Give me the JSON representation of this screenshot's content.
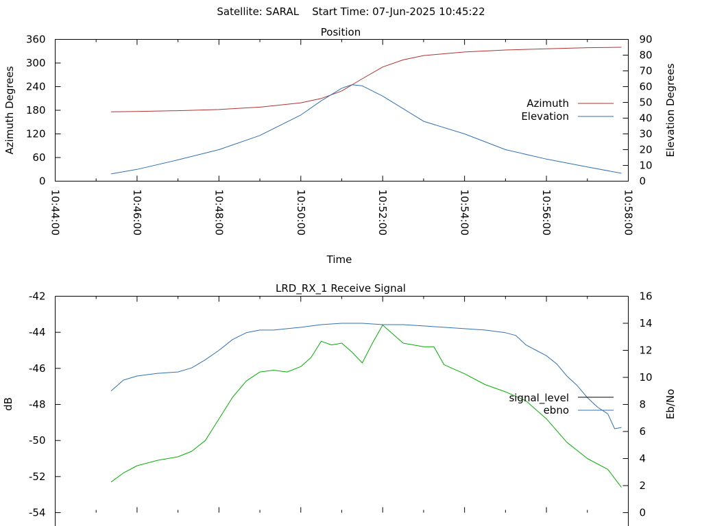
{
  "header": {
    "satellite_label": "Satellite: SARAL",
    "start_time_label": "Start Time: 07-Jun-2025 10:45:22"
  },
  "chart_data": [
    {
      "type": "line",
      "title": "Position",
      "xlabel": "Time",
      "ylabel": "Azimuth Degrees",
      "y2label": "Elevation Degrees",
      "xlim": [
        "10:44:00",
        "10:58:00"
      ],
      "ylim": [
        0,
        360
      ],
      "y2lim": [
        0,
        90
      ],
      "x_ticks": [
        "10:44:00",
        "10:46:00",
        "10:48:00",
        "10:50:00",
        "10:52:00",
        "10:54:00",
        "10:56:00",
        "10:58:00"
      ],
      "y_ticks": [
        "0",
        "60",
        "120",
        "180",
        "240",
        "300",
        "360"
      ],
      "y2_ticks": [
        "0",
        "10",
        "20",
        "30",
        "40",
        "50",
        "60",
        "70",
        "80",
        "90"
      ],
      "legend_position": "right",
      "series": [
        {
          "name": "Azimuth",
          "axis": "y",
          "color": "#b03030",
          "x": [
            "10:45:22",
            "10:46:00",
            "10:47:00",
            "10:48:00",
            "10:49:00",
            "10:50:00",
            "10:50:30",
            "10:51:00",
            "10:51:30",
            "10:52:00",
            "10:52:30",
            "10:53:00",
            "10:54:00",
            "10:55:00",
            "10:56:00",
            "10:57:00",
            "10:57:50"
          ],
          "values": [
            176,
            177,
            179,
            182,
            188,
            199,
            210,
            229,
            260,
            290,
            308,
            319,
            328,
            333,
            336,
            339,
            340
          ]
        },
        {
          "name": "Elevation",
          "axis": "y2",
          "color": "#3070b0",
          "x": [
            "10:45:22",
            "10:46:00",
            "10:47:00",
            "10:48:00",
            "10:49:00",
            "10:50:00",
            "10:50:30",
            "10:51:00",
            "10:51:15",
            "10:51:30",
            "10:52:00",
            "10:52:30",
            "10:53:00",
            "10:54:00",
            "10:55:00",
            "10:56:00",
            "10:57:00",
            "10:57:50"
          ],
          "values": [
            4.6,
            7.5,
            13.5,
            20,
            29,
            42,
            51,
            59,
            61.2,
            60.5,
            54,
            46,
            38,
            30,
            20,
            14,
            9,
            5
          ]
        }
      ]
    },
    {
      "type": "line",
      "title": "LRD_RX_1 Receive Signal",
      "xlabel": "",
      "ylabel": "dB",
      "y2label": "Eb/No",
      "xlim": [
        "10:44:00",
        "10:58:00"
      ],
      "ylim": [
        -54,
        -42
      ],
      "y2lim": [
        0,
        16
      ],
      "y_ticks": [
        "-54",
        "-52",
        "-50",
        "-48",
        "-46",
        "-44",
        "-42"
      ],
      "y2_ticks": [
        "0",
        "2",
        "4",
        "6",
        "8",
        "10",
        "12",
        "14",
        "16"
      ],
      "legend_position": "right",
      "series": [
        {
          "name": "signal_level",
          "axis": "y",
          "color": "#00b000",
          "x": [
            "10:45:22",
            "10:45:40",
            "10:46:00",
            "10:46:30",
            "10:47:00",
            "10:47:20",
            "10:47:40",
            "10:48:00",
            "10:48:20",
            "10:48:40",
            "10:49:00",
            "10:49:20",
            "10:49:40",
            "10:50:00",
            "10:50:15",
            "10:50:30",
            "10:50:45",
            "10:51:00",
            "10:51:15",
            "10:51:30",
            "10:51:45",
            "10:52:00",
            "10:52:30",
            "10:53:00",
            "10:53:15",
            "10:53:30",
            "10:54:00",
            "10:54:30",
            "10:55:00",
            "10:55:30",
            "10:56:00",
            "10:56:30",
            "10:57:00",
            "10:57:30",
            "10:57:50"
          ],
          "values": [
            -52.3,
            -51.8,
            -51.4,
            -51.1,
            -50.9,
            -50.6,
            -50.0,
            -48.8,
            -47.6,
            -46.7,
            -46.2,
            -46.1,
            -46.2,
            -45.9,
            -45.4,
            -44.5,
            -44.7,
            -44.6,
            -45.1,
            -45.7,
            -44.6,
            -43.6,
            -44.6,
            -44.8,
            -44.8,
            -45.8,
            -46.3,
            -46.9,
            -47.3,
            -47.8,
            -48.8,
            -50.1,
            -51.0,
            -51.6,
            -52.6
          ]
        },
        {
          "name": "ebno",
          "axis": "y2",
          "color": "#3070b0",
          "x": [
            "10:45:22",
            "10:45:40",
            "10:46:00",
            "10:46:30",
            "10:47:00",
            "10:47:20",
            "10:47:40",
            "10:48:00",
            "10:48:20",
            "10:48:40",
            "10:49:00",
            "10:49:20",
            "10:49:40",
            "10:50:00",
            "10:50:30",
            "10:51:00",
            "10:51:30",
            "10:52:00",
            "10:52:30",
            "10:53:00",
            "10:53:30",
            "10:54:00",
            "10:54:30",
            "10:55:00",
            "10:55:15",
            "10:55:30",
            "10:55:45",
            "10:56:00",
            "10:56:15",
            "10:56:30",
            "10:56:45",
            "10:57:00",
            "10:57:15",
            "10:57:30",
            "10:57:40",
            "10:57:50"
          ],
          "values": [
            9.0,
            9.8,
            10.1,
            10.3,
            10.4,
            10.7,
            11.3,
            12.0,
            12.8,
            13.3,
            13.5,
            13.5,
            13.6,
            13.7,
            13.9,
            14.0,
            14.0,
            13.9,
            13.9,
            13.8,
            13.7,
            13.6,
            13.5,
            13.3,
            13.1,
            12.4,
            12.0,
            11.6,
            11.0,
            10.1,
            9.4,
            8.5,
            7.8,
            7.3,
            6.2,
            6.3
          ]
        }
      ]
    }
  ]
}
